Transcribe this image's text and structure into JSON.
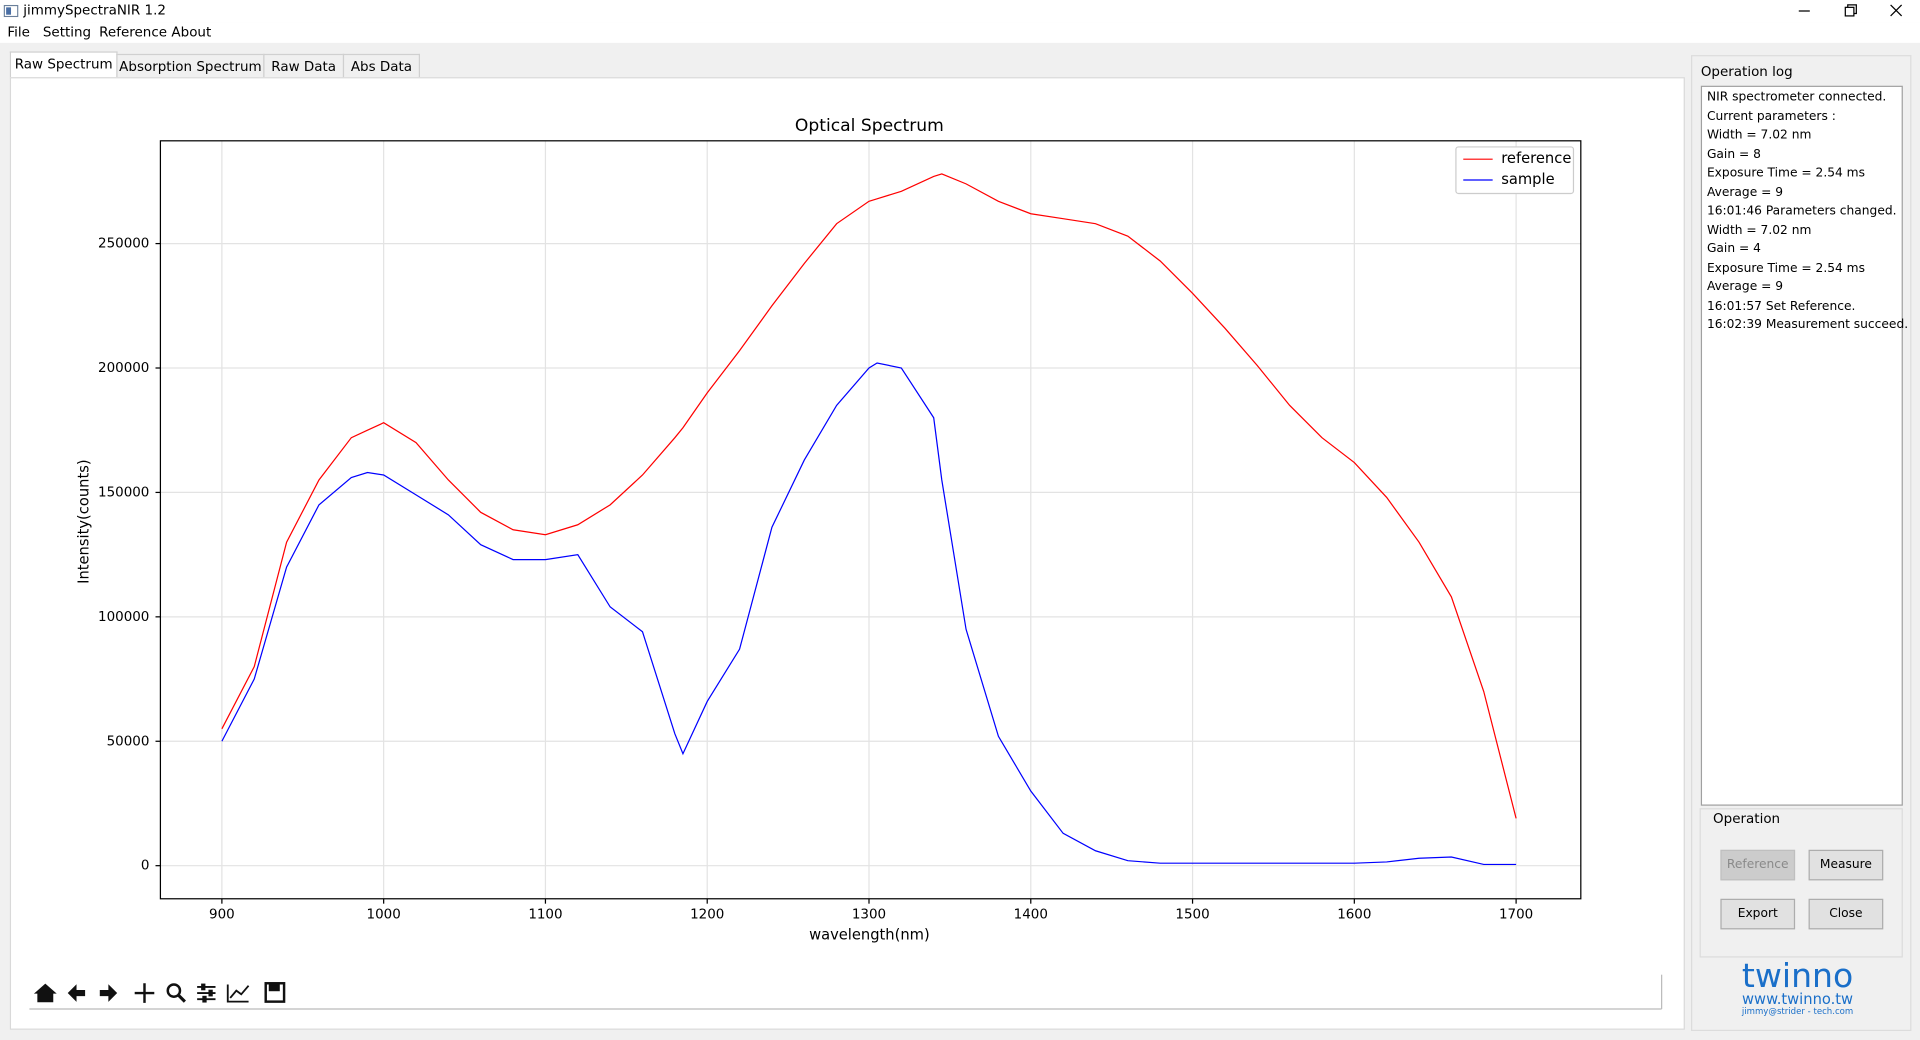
{
  "window": {
    "title": "jimmySpectraNIR 1.2"
  },
  "menu": [
    "File",
    "Setting",
    "Reference",
    "About"
  ],
  "tabs": [
    "Raw Spectrum",
    "Absorption Spectrum",
    "Raw Data",
    "Abs Data"
  ],
  "chart_data": {
    "type": "line",
    "title": "Optical Spectrum",
    "x_label": "wavelength(nm)",
    "y_label": "Intensity(counts)",
    "x": [
      900,
      920,
      940,
      960,
      980,
      990,
      1000,
      1020,
      1040,
      1060,
      1080,
      1100,
      1120,
      1140,
      1160,
      1180,
      1185,
      1200,
      1220,
      1240,
      1260,
      1280,
      1300,
      1305,
      1320,
      1340,
      1345,
      1360,
      1380,
      1400,
      1420,
      1440,
      1460,
      1480,
      1500,
      1520,
      1540,
      1560,
      1580,
      1600,
      1620,
      1640,
      1660,
      1680,
      1700
    ],
    "series": [
      {
        "name": "reference",
        "color": "#ff0000",
        "values": [
          55000,
          80000,
          130000,
          155000,
          172000,
          175000,
          178000,
          170000,
          155000,
          142000,
          135000,
          133000,
          137000,
          145000,
          157000,
          172000,
          176000,
          190000,
          207000,
          225000,
          242000,
          258000,
          267000,
          268000,
          271000,
          277000,
          278000,
          274000,
          267000,
          262000,
          260000,
          258000,
          253000,
          243000,
          230000,
          216000,
          201000,
          185000,
          172000,
          162000,
          148000,
          130000,
          108000,
          70000,
          19000
        ]
      },
      {
        "name": "sample",
        "color": "#0000ff",
        "values": [
          50000,
          75000,
          120000,
          145000,
          156000,
          158000,
          157000,
          149000,
          141000,
          129000,
          123000,
          123000,
          125000,
          104000,
          94000,
          53000,
          45000,
          66000,
          87000,
          136000,
          163000,
          185000,
          200000,
          202000,
          200000,
          180000,
          155000,
          95000,
          52000,
          30000,
          13000,
          6000,
          2000,
          1000,
          1000,
          1000,
          1000,
          1000,
          1000,
          1000,
          1500,
          3000,
          3500,
          500,
          500
        ]
      }
    ],
    "xlim": [
      862,
      1740
    ],
    "ylim": [
      -13300,
      291300
    ],
    "xticks": [
      900,
      1000,
      1100,
      1200,
      1300,
      1400,
      1500,
      1600,
      1700
    ],
    "yticks": [
      0,
      50000,
      100000,
      150000,
      200000,
      250000
    ],
    "grid": true,
    "legend": "upper right"
  },
  "log": {
    "title": "Operation log",
    "lines": [
      "NIR spectrometer connected.",
      "Current parameters :",
      "Width = 7.02 nm",
      "Gain = 8",
      "Exposure Time = 2.54 ms",
      "Average = 9",
      "16:01:46 Parameters changed.",
      "Width = 7.02 nm",
      "Gain = 4",
      "Exposure Time = 2.54 ms",
      "Average = 9",
      "16:01:57 Set Reference.",
      "16:02:39 Measurement succeed."
    ]
  },
  "operation": {
    "title": "Operation",
    "buttons": [
      "Reference",
      "Measure",
      "Export",
      "Close"
    ]
  },
  "logo": {
    "name": "twinno",
    "url": "www.twinno.tw",
    "contact": "jimmy@strider - tech.com"
  }
}
